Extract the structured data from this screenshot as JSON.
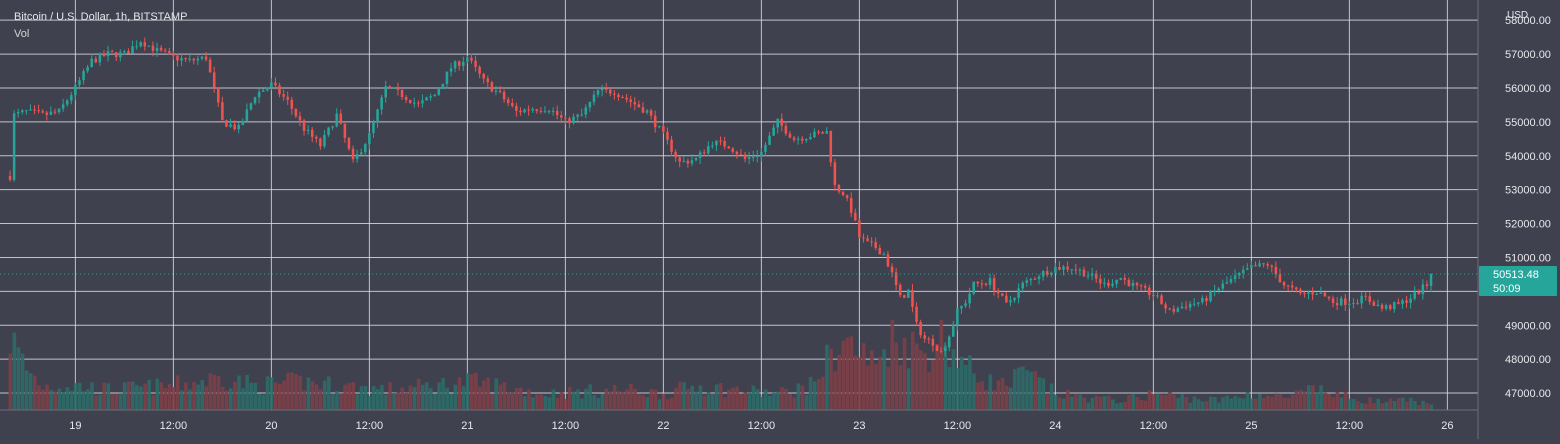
{
  "header": {
    "title": "Bitcoin / U.S. Dollar, 1h, BITSTAMP",
    "volume_label": "Vol",
    "axis_currency": "USD"
  },
  "colors": {
    "background": "#3f414e",
    "grid": "#d9dbe3",
    "up": "#26a69a",
    "down": "#ef5350",
    "up_volume": "#2e6b69",
    "down_volume": "#7d3f48",
    "axis_text": "#e8e8ee",
    "last_price_badge": "#26a69a"
  },
  "chart_data": {
    "type": "candlestick",
    "interval": "1h",
    "ylim": [
      46500,
      58300
    ],
    "y_ticks": [
      47000,
      48000,
      49000,
      50000,
      51000,
      52000,
      53000,
      54000,
      55000,
      56000,
      57000,
      58000
    ],
    "y_tick_labels": [
      "47000.00",
      "48000.00",
      "49000.00",
      "50000.00",
      "51000.00",
      "52000.00",
      "53000.00",
      "54000.00",
      "55000.00",
      "56000.00",
      "57000.00",
      "58000.00"
    ],
    "x_ticks": [
      {
        "bar": 16,
        "label": "19"
      },
      {
        "bar": 40,
        "label": "12:00"
      },
      {
        "bar": 64,
        "label": "20"
      },
      {
        "bar": 88,
        "label": "12:00"
      },
      {
        "bar": 112,
        "label": "21"
      },
      {
        "bar": 136,
        "label": "12:00"
      },
      {
        "bar": 160,
        "label": "22"
      },
      {
        "bar": 184,
        "label": "12:00"
      },
      {
        "bar": 208,
        "label": "23"
      },
      {
        "bar": 232,
        "label": "12:00"
      },
      {
        "bar": 256,
        "label": "24"
      },
      {
        "bar": 280,
        "label": "12:00"
      },
      {
        "bar": 304,
        "label": "25"
      },
      {
        "bar": 328,
        "label": "12:00"
      },
      {
        "bar": 352,
        "label": "26"
      }
    ],
    "last_price": 50513.48,
    "last_price_label": "50513.48",
    "countdown_label": "50:09",
    "close_anchors": [
      [
        0,
        53400
      ],
      [
        1,
        55200
      ],
      [
        4,
        55300
      ],
      [
        8,
        55200
      ],
      [
        12,
        55300
      ],
      [
        16,
        56000
      ],
      [
        20,
        56800
      ],
      [
        24,
        57000
      ],
      [
        28,
        57000
      ],
      [
        32,
        57400
      ],
      [
        36,
        57100
      ],
      [
        40,
        56900
      ],
      [
        44,
        56800
      ],
      [
        48,
        56900
      ],
      [
        52,
        55000
      ],
      [
        56,
        54800
      ],
      [
        60,
        55800
      ],
      [
        64,
        56100
      ],
      [
        68,
        55600
      ],
      [
        72,
        54800
      ],
      [
        76,
        54300
      ],
      [
        80,
        55200
      ],
      [
        84,
        53800
      ],
      [
        88,
        54600
      ],
      [
        92,
        56000
      ],
      [
        96,
        55800
      ],
      [
        100,
        55500
      ],
      [
        104,
        55800
      ],
      [
        108,
        56600
      ],
      [
        112,
        56900
      ],
      [
        116,
        56200
      ],
      [
        120,
        55800
      ],
      [
        124,
        55300
      ],
      [
        128,
        55400
      ],
      [
        132,
        55400
      ],
      [
        136,
        55000
      ],
      [
        140,
        55200
      ],
      [
        144,
        55900
      ],
      [
        148,
        55900
      ],
      [
        152,
        55600
      ],
      [
        156,
        55300
      ],
      [
        160,
        54600
      ],
      [
        164,
        53800
      ],
      [
        168,
        53900
      ],
      [
        172,
        54400
      ],
      [
        176,
        54300
      ],
      [
        180,
        53900
      ],
      [
        184,
        54100
      ],
      [
        188,
        55000
      ],
      [
        192,
        54500
      ],
      [
        196,
        54600
      ],
      [
        200,
        54700
      ],
      [
        202,
        53100
      ],
      [
        204,
        52900
      ],
      [
        206,
        52400
      ],
      [
        208,
        51600
      ],
      [
        210,
        51400
      ],
      [
        212,
        51300
      ],
      [
        214,
        51100
      ],
      [
        216,
        50500
      ],
      [
        218,
        49800
      ],
      [
        220,
        50000
      ],
      [
        222,
        49000
      ],
      [
        224,
        48600
      ],
      [
        226,
        48500
      ],
      [
        228,
        48200
      ],
      [
        230,
        48700
      ],
      [
        232,
        49400
      ],
      [
        234,
        49700
      ],
      [
        236,
        50200
      ],
      [
        240,
        50300
      ],
      [
        244,
        49600
      ],
      [
        248,
        50200
      ],
      [
        252,
        50500
      ],
      [
        256,
        50700
      ],
      [
        260,
        50700
      ],
      [
        264,
        50500
      ],
      [
        268,
        50200
      ],
      [
        272,
        50400
      ],
      [
        276,
        50100
      ],
      [
        280,
        49900
      ],
      [
        284,
        49400
      ],
      [
        288,
        49600
      ],
      [
        292,
        49700
      ],
      [
        296,
        50100
      ],
      [
        300,
        50400
      ],
      [
        304,
        50700
      ],
      [
        308,
        50800
      ],
      [
        312,
        50200
      ],
      [
        316,
        49900
      ],
      [
        320,
        50000
      ],
      [
        324,
        49700
      ],
      [
        328,
        49700
      ],
      [
        332,
        49800
      ],
      [
        336,
        49500
      ],
      [
        340,
        49600
      ],
      [
        344,
        49900
      ],
      [
        347,
        50200
      ],
      [
        348,
        50513
      ]
    ],
    "volume_profile": [
      [
        0,
        0.9
      ],
      [
        4,
        0.5
      ],
      [
        8,
        0.3
      ],
      [
        16,
        0.3
      ],
      [
        24,
        0.25
      ],
      [
        40,
        0.3
      ],
      [
        52,
        0.4
      ],
      [
        60,
        0.3
      ],
      [
        72,
        0.35
      ],
      [
        80,
        0.3
      ],
      [
        92,
        0.25
      ],
      [
        104,
        0.3
      ],
      [
        112,
        0.35
      ],
      [
        120,
        0.3
      ],
      [
        130,
        0.2
      ],
      [
        150,
        0.25
      ],
      [
        160,
        0.2
      ],
      [
        168,
        0.3
      ],
      [
        176,
        0.25
      ],
      [
        188,
        0.2
      ],
      [
        196,
        0.3
      ],
      [
        200,
        0.6
      ],
      [
        204,
        0.85
      ],
      [
        208,
        0.7
      ],
      [
        212,
        0.55
      ],
      [
        216,
        0.95
      ],
      [
        220,
        0.8
      ],
      [
        224,
        0.7
      ],
      [
        228,
        0.9
      ],
      [
        232,
        0.65
      ],
      [
        236,
        0.45
      ],
      [
        240,
        0.35
      ],
      [
        244,
        0.3
      ],
      [
        248,
        0.45
      ],
      [
        252,
        0.35
      ],
      [
        256,
        0.2
      ],
      [
        264,
        0.15
      ],
      [
        272,
        0.12
      ],
      [
        280,
        0.2
      ],
      [
        288,
        0.15
      ],
      [
        296,
        0.12
      ],
      [
        304,
        0.2
      ],
      [
        312,
        0.15
      ],
      [
        320,
        0.25
      ],
      [
        328,
        0.15
      ],
      [
        336,
        0.1
      ],
      [
        344,
        0.12
      ],
      [
        348,
        0.05
      ]
    ]
  }
}
